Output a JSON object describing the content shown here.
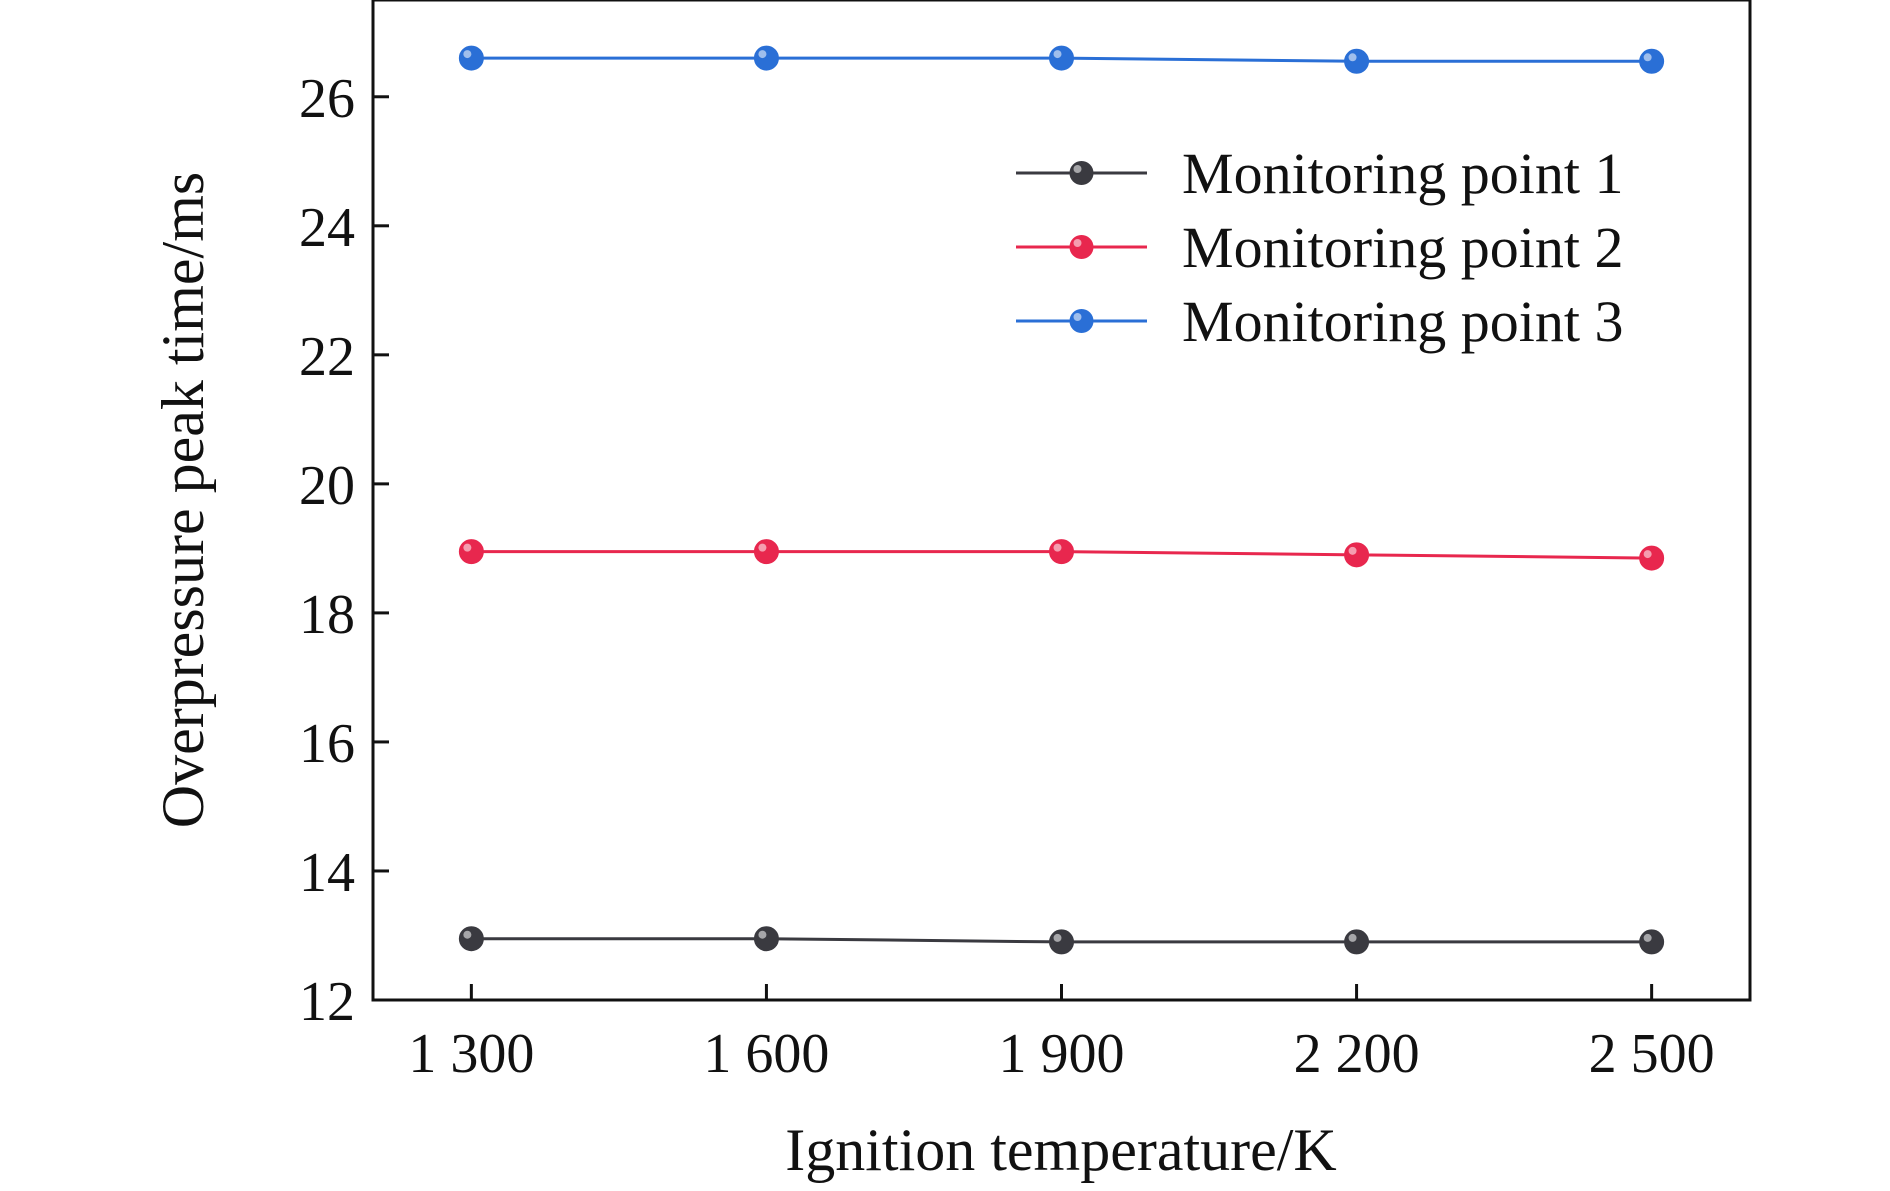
{
  "chart_data": {
    "type": "line",
    "title": "",
    "xlabel": "Ignition temperature/K",
    "ylabel": "Overpressure peak time/ms",
    "categories": [
      "1 300",
      "1 600",
      "1 900",
      "2 200",
      "2 500"
    ],
    "x": [
      1300,
      1600,
      1900,
      2200,
      2500
    ],
    "xlim": [
      1200,
      2600
    ],
    "ylim": [
      12,
      27.5
    ],
    "yticks": [
      12,
      14,
      16,
      18,
      20,
      22,
      24,
      26
    ],
    "ytick_labels": [
      "12",
      "14",
      "16",
      "18",
      "20",
      "22",
      "24",
      "26"
    ],
    "grid": false,
    "legend_position": "top-right",
    "series": [
      {
        "name": "Monitoring point 1",
        "color": "#3a3a40",
        "values": [
          12.95,
          12.95,
          12.9,
          12.9,
          12.9
        ]
      },
      {
        "name": "Monitoring point 2",
        "color": "#e8274e",
        "values": [
          18.95,
          18.95,
          18.95,
          18.9,
          18.85
        ]
      },
      {
        "name": "Monitoring point 3",
        "color": "#2a6fd6",
        "values": [
          26.6,
          26.6,
          26.6,
          26.55,
          26.55
        ]
      }
    ]
  }
}
